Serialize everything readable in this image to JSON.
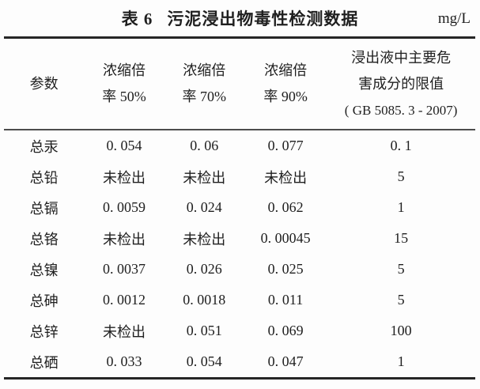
{
  "caption": {
    "index": "表 6",
    "title": "污泥浸出物毒性检测数据",
    "unit": "mg/L"
  },
  "table": {
    "header": {
      "param": "参数",
      "c50": {
        "line1": "浓缩倍",
        "line2": "率 50%"
      },
      "c70": {
        "line1": "浓缩倍",
        "line2": "率 70%"
      },
      "c90": {
        "line1": "浓缩倍",
        "line2": "率 90%"
      },
      "limit": {
        "line1": "浸出液中主要危",
        "line2": "害成分的限值",
        "line3": "( GB 5085. 3 - 2007)"
      }
    },
    "rows": [
      {
        "param": "总汞",
        "v50": "0. 054",
        "v70": "0. 06",
        "v90": "0. 077",
        "limit": "0. 1"
      },
      {
        "param": "总铅",
        "v50": "未检出",
        "v70": "未检出",
        "v90": "未检出",
        "limit": "5"
      },
      {
        "param": "总镉",
        "v50": "0. 0059",
        "v70": "0. 024",
        "v90": "0. 062",
        "limit": "1"
      },
      {
        "param": "总铬",
        "v50": "未检出",
        "v70": "未检出",
        "v90": "0. 00045",
        "limit": "15"
      },
      {
        "param": "总镍",
        "v50": "0. 0037",
        "v70": "0. 026",
        "v90": "0. 025",
        "limit": "5"
      },
      {
        "param": "总砷",
        "v50": "0. 0012",
        "v70": "0. 0018",
        "v90": "0. 011",
        "limit": "5"
      },
      {
        "param": "总锌",
        "v50": "未检出",
        "v70": "0. 051",
        "v90": "0. 069",
        "limit": "100"
      },
      {
        "param": "总硒",
        "v50": "0. 033",
        "v70": "0. 054",
        "v90": "0. 047",
        "limit": "1"
      }
    ]
  },
  "colors": {
    "text": "#1f1f1f",
    "rule_heavy": "#262626",
    "rule_light": "#4d4d4d",
    "background": "#fdfdfd"
  },
  "chart_data": {
    "type": "table",
    "title": "表 6 污泥浸出物毒性检测数据",
    "unit": "mg/L",
    "columns": [
      "参数",
      "浓缩倍率 50%",
      "浓缩倍率 70%",
      "浓缩倍率 90%",
      "浸出液中主要危害成分的限值 (GB 5085.3 - 2007)"
    ],
    "rows": [
      [
        "总汞",
        "0.054",
        "0.06",
        "0.077",
        "0.1"
      ],
      [
        "总铅",
        "未检出",
        "未检出",
        "未检出",
        "5"
      ],
      [
        "总镉",
        "0.0059",
        "0.024",
        "0.062",
        "1"
      ],
      [
        "总铬",
        "未检出",
        "未检出",
        "0.00045",
        "15"
      ],
      [
        "总镍",
        "0.0037",
        "0.026",
        "0.025",
        "5"
      ],
      [
        "总砷",
        "0.0012",
        "0.0018",
        "0.011",
        "5"
      ],
      [
        "总锌",
        "未检出",
        "0.051",
        "0.069",
        "100"
      ],
      [
        "总硒",
        "0.033",
        "0.054",
        "0.047",
        "1"
      ]
    ]
  }
}
